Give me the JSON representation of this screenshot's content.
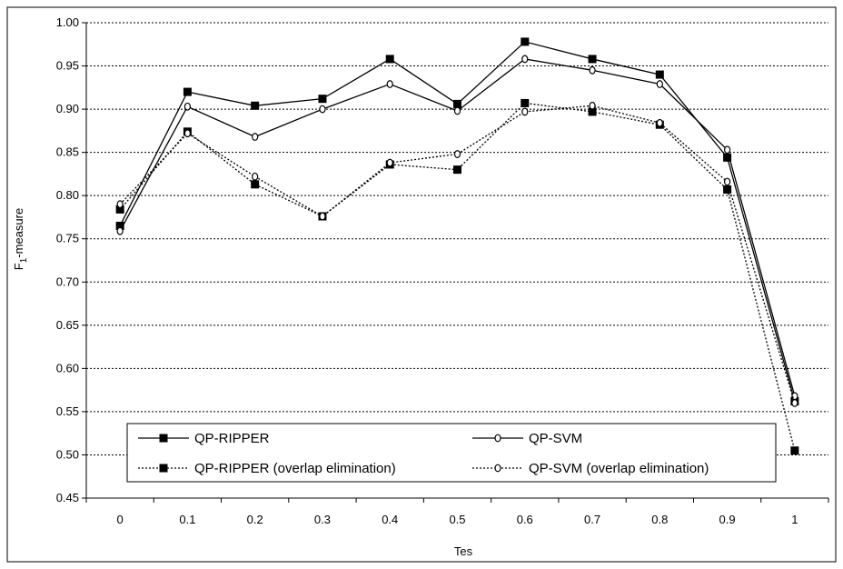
{
  "chart_data": {
    "type": "line",
    "title": "",
    "xlabel": "Tes",
    "ylabel_main": "F",
    "ylabel_sub": "1",
    "ylabel_rest": "-measure",
    "categories": [
      "0",
      "0.1",
      "0.2",
      "0.3",
      "0.4",
      "0.5",
      "0.6",
      "0.7",
      "0.8",
      "0.9",
      "1"
    ],
    "ylim": [
      0.45,
      1.0
    ],
    "yticks": [
      "0.45",
      "0.50",
      "0.55",
      "0.60",
      "0.65",
      "0.70",
      "0.75",
      "0.80",
      "0.85",
      "0.90",
      "0.95",
      "1.00"
    ],
    "grid": "horizontal-dotted",
    "legend_placement": "bottom-left",
    "series": [
      {
        "name": "QP-RIPPER",
        "marker": "square",
        "line": "solid",
        "values": [
          0.765,
          0.92,
          0.904,
          0.912,
          0.958,
          0.906,
          0.978,
          0.958,
          0.94,
          0.844,
          0.562
        ]
      },
      {
        "name": "QP-SVM",
        "marker": "circle",
        "line": "solid",
        "values": [
          0.759,
          0.903,
          0.868,
          0.9,
          0.929,
          0.898,
          0.958,
          0.945,
          0.929,
          0.853,
          0.568
        ]
      },
      {
        "name": "QP-RIPPER (overlap elimination)",
        "marker": "square",
        "line": "dotted",
        "values": [
          0.784,
          0.874,
          0.813,
          0.776,
          0.836,
          0.83,
          0.907,
          0.897,
          0.882,
          0.807,
          0.505
        ]
      },
      {
        "name": "QP-SVM (overlap elimination)",
        "marker": "circle",
        "line": "dotted",
        "values": [
          0.79,
          0.872,
          0.822,
          0.776,
          0.838,
          0.848,
          0.897,
          0.904,
          0.884,
          0.816,
          0.56
        ]
      }
    ]
  }
}
